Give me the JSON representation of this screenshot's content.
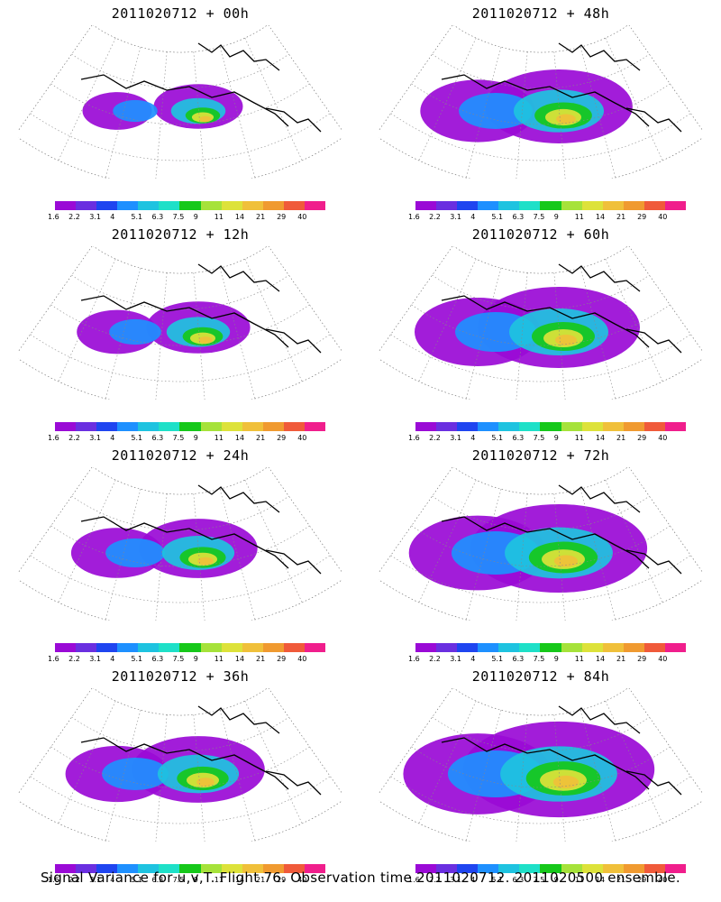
{
  "panels": [
    {
      "title": "2011020712 + 00h"
    },
    {
      "title": "2011020712 + 48h"
    },
    {
      "title": "2011020712 + 12h"
    },
    {
      "title": "2011020712 + 60h"
    },
    {
      "title": "2011020712 + 24h"
    },
    {
      "title": "2011020712 + 72h"
    },
    {
      "title": "2011020712 + 36h"
    },
    {
      "title": "2011020712 + 84h"
    }
  ],
  "colorbar": {
    "labels": [
      "1.6",
      "2.2",
      "3.1",
      "4",
      "5.1",
      "6.3",
      "7.5",
      "9",
      "11",
      "14",
      "21",
      "29",
      "40"
    ],
    "colors": [
      "#9a0ad6",
      "#6a2fe0",
      "#1f45f0",
      "#1e90ff",
      "#1ec3e0",
      "#1ee0c8",
      "#16c81a",
      "#a6e23a",
      "#dde23a",
      "#f0c03a",
      "#f09a30",
      "#f05a3a",
      "#f01e8c"
    ]
  },
  "footer": "Signal Variance for u,v,T. Flight 76. Observation time 2011020712. 2011020500 ensemble."
}
